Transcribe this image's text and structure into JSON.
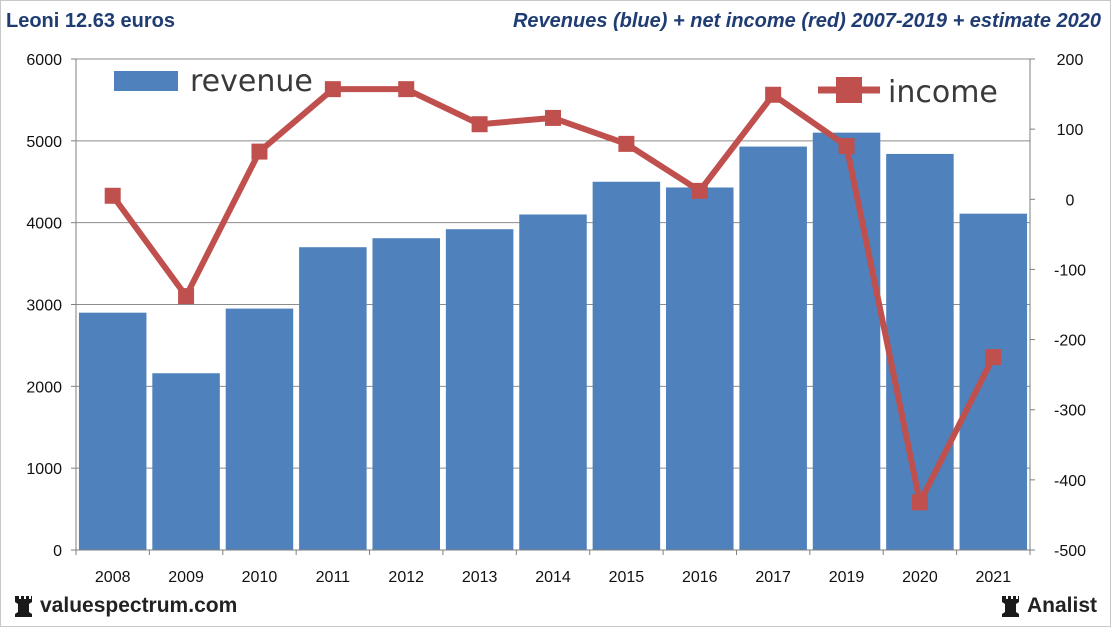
{
  "header": {
    "left_title": "Leoni 12.63 euros",
    "right_title": "Revenues (blue) + net income (red) 2007-2019 + estimate 2020"
  },
  "footer": {
    "left_brand": "valuespectrum.com",
    "right_brand": "Analist",
    "left_icon": "rook-icon",
    "right_icon": "rook-icon"
  },
  "colors": {
    "revenue_bar": "#4f81bd",
    "income_line": "#c0504d",
    "title_text": "#1f3c73"
  },
  "chart_data": {
    "type": "bar",
    "title": "Revenues (blue) + net income (red) 2007-2019 + estimate 2020",
    "categories": [
      "2008",
      "2009",
      "2010",
      "2011",
      "2012",
      "2013",
      "2014",
      "2015",
      "2016",
      "2017",
      "2019",
      "2020",
      "2021"
    ],
    "series": [
      {
        "name": "revenue",
        "type": "bar",
        "axis": "left",
        "values": [
          2900,
          2160,
          2950,
          3700,
          3810,
          3920,
          4100,
          4500,
          4430,
          4930,
          5100,
          4840,
          4110
        ]
      },
      {
        "name": "income",
        "type": "line",
        "axis": "right",
        "values": [
          5,
          -138,
          68,
          157,
          157,
          107,
          116,
          79,
          12,
          149,
          76,
          -432,
          -225
        ]
      }
    ],
    "y_left": {
      "min": 0,
      "max": 6000,
      "ticks": [
        0,
        1000,
        2000,
        3000,
        4000,
        5000,
        6000
      ]
    },
    "y_right": {
      "min": -500,
      "max": 200,
      "ticks": [
        -500,
        -400,
        -300,
        -200,
        -100,
        0,
        100,
        200
      ]
    },
    "grid": true,
    "legend": [
      {
        "label": "revenue",
        "placement": "top-left"
      },
      {
        "label": "income",
        "placement": "top-right"
      }
    ]
  }
}
